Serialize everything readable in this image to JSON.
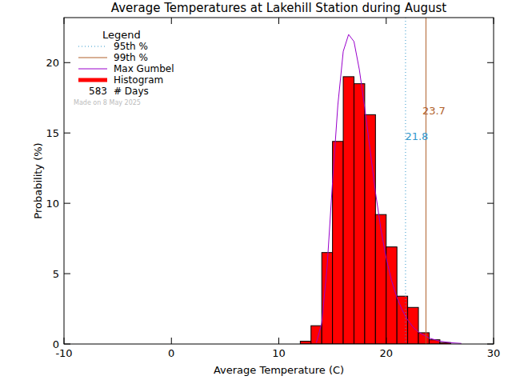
{
  "chart_data": {
    "type": "histogram",
    "title": "Average Temperatures at Lakehill Station during August",
    "x_label": "Average Temperature (C)",
    "y_label": "Probability (%)",
    "bins": [
      12,
      13,
      14,
      15,
      16,
      17,
      18,
      19,
      20,
      21,
      22,
      23,
      24,
      25,
      26
    ],
    "values": [
      0.2,
      1.3,
      6.5,
      14.4,
      19.0,
      18.5,
      16.3,
      9.2,
      6.9,
      3.4,
      2.6,
      0.8,
      0.3,
      0.1
    ],
    "color": "#ff0000",
    "histogram_label": "Histogram",
    "series": [
      {
        "name": "Max Gumbel",
        "type": "line",
        "color": "#9900cc",
        "x": [
          13.5,
          14,
          14.5,
          15,
          15.5,
          16,
          16.5,
          17,
          17.5,
          18,
          18.5,
          19,
          19.5,
          20,
          20.5,
          21,
          21.5,
          22,
          22.5,
          23,
          24,
          25,
          26,
          27
        ],
        "values": [
          0.1,
          1.5,
          5.5,
          11.5,
          17,
          20.8,
          22,
          21.5,
          19.5,
          16.8,
          13.8,
          10.8,
          8.2,
          6.1,
          4.5,
          3.3,
          2.4,
          1.7,
          1.2,
          0.85,
          0.42,
          0.2,
          0.09,
          0.04
        ]
      }
    ],
    "percentiles": [
      {
        "name": "95th %",
        "value": 21.8,
        "color": "#3399cc",
        "line_style": "dotted"
      },
      {
        "name": "99th %",
        "value": 23.7,
        "color": "#b0602a",
        "line_style": "solid"
      }
    ],
    "legend_title": "Legend",
    "legend": "top-left",
    "days": 583,
    "days_label": "# Days",
    "note": "Made on 8 May 2025",
    "xlim": [
      -10,
      30
    ],
    "ylim": [
      0,
      23.2
    ],
    "xticks": [
      -10,
      0,
      10,
      20,
      30
    ],
    "yticks": [
      0,
      5,
      10,
      15,
      20
    ],
    "grid": false
  }
}
